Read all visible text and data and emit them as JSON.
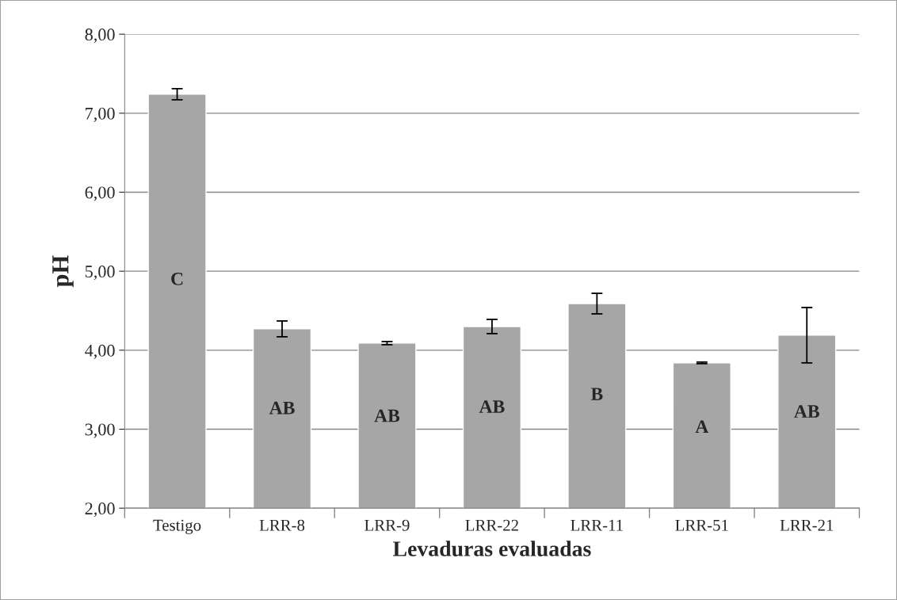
{
  "chart_data": {
    "type": "bar",
    "xlabel": "Levaduras evaluadas",
    "ylabel": "pH",
    "categories": [
      "Testigo",
      "LRR-8",
      "LRR-9",
      "LRR-22",
      "LRR-11",
      "LRR-51",
      "LRR-21"
    ],
    "values": [
      7.24,
      4.27,
      4.09,
      4.3,
      4.59,
      3.84,
      4.19
    ],
    "errors": [
      0.07,
      0.1,
      0.02,
      0.09,
      0.13,
      0.01,
      0.35
    ],
    "color": "#a6a6a6",
    "ylim": [
      2,
      8
    ],
    "yticks": [
      {
        "value": 2,
        "label": "2,00"
      },
      {
        "value": 3,
        "label": "3,00"
      },
      {
        "value": 4,
        "label": "4,00"
      },
      {
        "value": 5,
        "label": "5,00"
      },
      {
        "value": 6,
        "label": "6,00"
      },
      {
        "value": 7,
        "label": "7,00"
      },
      {
        "value": 8,
        "label": "8,00"
      }
    ],
    "grid": "y",
    "annotations": [
      "C",
      "AB",
      "AB",
      "AB",
      "B",
      "A",
      "AB"
    ]
  }
}
